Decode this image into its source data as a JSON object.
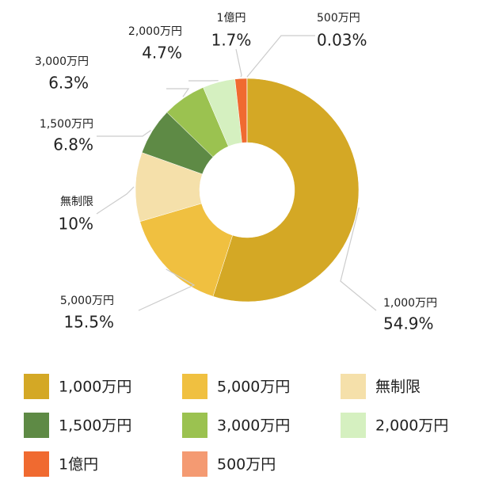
{
  "chart_data": {
    "type": "donut",
    "categories": [
      "1,000万円",
      "5,000万円",
      "無制限",
      "1,500万円",
      "3,000万円",
      "2,000万円",
      "1億円",
      "500万円"
    ],
    "values": [
      54.9,
      15.5,
      10,
      6.8,
      6.3,
      4.7,
      1.7,
      0.03
    ],
    "value_labels": [
      "54.9%",
      "15.5%",
      "10%",
      "6.8%",
      "6.3%",
      "4.7%",
      "1.7%",
      "0.03%"
    ],
    "colors": [
      "#d4a825",
      "#f0c040",
      "#f5e0aa",
      "#5e8a45",
      "#9bc250",
      "#d5f0c0",
      "#f06a30",
      "#f49a72"
    ],
    "legend": true
  }
}
